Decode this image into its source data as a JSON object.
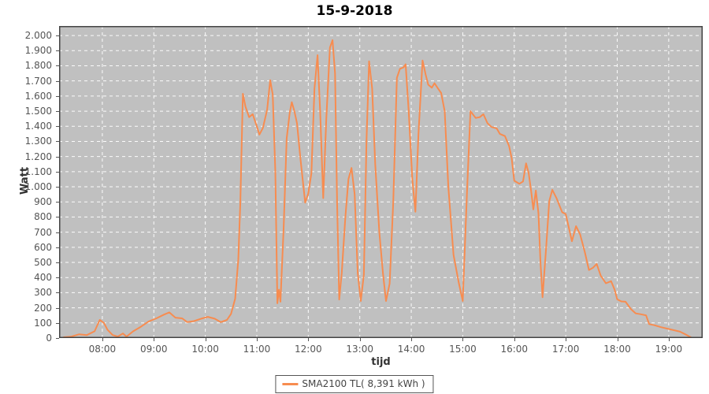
{
  "title": "15-9-2018",
  "axes": {
    "y_label": "Watt",
    "x_label": "tijd"
  },
  "legend": {
    "label": "SMA2100 TL( 8,391 kWh )"
  },
  "colors": {
    "line": "#f78c50",
    "plot_bg": "#c0c0c0",
    "grid": "#ffffff",
    "frame": "#444444",
    "tick_label": "#555555"
  },
  "chart_data": {
    "type": "line",
    "title": "15-9-2018",
    "xlabel": "tijd",
    "ylabel": "Watt",
    "grid": "white dashed on gray background",
    "legend_position": "bottom-center",
    "xlim_hours": [
      7.16,
      19.66
    ],
    "ylim": [
      0,
      2063
    ],
    "x_ticks_hours": [
      8,
      9,
      10,
      11,
      12,
      13,
      14,
      15,
      16,
      17,
      18,
      19
    ],
    "x_tick_labels": [
      "08:00",
      "09:00",
      "10:00",
      "11:00",
      "12:00",
      "13:00",
      "14:00",
      "15:00",
      "16:00",
      "17:00",
      "18:00",
      "19:00"
    ],
    "y_ticks": [
      0,
      100,
      200,
      300,
      400,
      500,
      600,
      700,
      800,
      900,
      1000,
      1100,
      1200,
      1300,
      1400,
      1500,
      1600,
      1700,
      1800,
      1900,
      2000
    ],
    "series": [
      {
        "name": "SMA2100 TL( 8,391 kWh )",
        "color": "#f78c50",
        "points": [
          [
            7.25,
            5
          ],
          [
            7.4,
            10
          ],
          [
            7.55,
            25
          ],
          [
            7.7,
            20
          ],
          [
            7.85,
            45
          ],
          [
            7.95,
            120
          ],
          [
            8.03,
            100
          ],
          [
            8.1,
            55
          ],
          [
            8.2,
            20
          ],
          [
            8.3,
            10
          ],
          [
            8.4,
            30
          ],
          [
            8.47,
            10
          ],
          [
            8.6,
            45
          ],
          [
            8.75,
            75
          ],
          [
            8.9,
            110
          ],
          [
            9.05,
            130
          ],
          [
            9.2,
            155
          ],
          [
            9.3,
            170
          ],
          [
            9.42,
            135
          ],
          [
            9.55,
            130
          ],
          [
            9.65,
            105
          ],
          [
            9.78,
            112
          ],
          [
            9.92,
            128
          ],
          [
            10.05,
            140
          ],
          [
            10.18,
            128
          ],
          [
            10.3,
            105
          ],
          [
            10.42,
            120
          ],
          [
            10.5,
            160
          ],
          [
            10.58,
            260
          ],
          [
            10.64,
            520
          ],
          [
            10.68,
            900
          ],
          [
            10.73,
            1615
          ],
          [
            10.78,
            1530
          ],
          [
            10.85,
            1460
          ],
          [
            10.92,
            1480
          ],
          [
            11.0,
            1400
          ],
          [
            11.05,
            1345
          ],
          [
            11.12,
            1390
          ],
          [
            11.2,
            1510
          ],
          [
            11.26,
            1705
          ],
          [
            11.31,
            1610
          ],
          [
            11.36,
            1100
          ],
          [
            11.4,
            230
          ],
          [
            11.43,
            320
          ],
          [
            11.46,
            240
          ],
          [
            11.52,
            720
          ],
          [
            11.58,
            1320
          ],
          [
            11.64,
            1490
          ],
          [
            11.68,
            1560
          ],
          [
            11.73,
            1500
          ],
          [
            11.78,
            1420
          ],
          [
            11.85,
            1180
          ],
          [
            11.94,
            895
          ],
          [
            12.0,
            955
          ],
          [
            12.06,
            1090
          ],
          [
            12.12,
            1650
          ],
          [
            12.18,
            1870
          ],
          [
            12.23,
            1500
          ],
          [
            12.29,
            925
          ],
          [
            12.35,
            1450
          ],
          [
            12.42,
            1920
          ],
          [
            12.47,
            1970
          ],
          [
            12.52,
            1750
          ],
          [
            12.56,
            900
          ],
          [
            12.6,
            255
          ],
          [
            12.65,
            430
          ],
          [
            12.72,
            800
          ],
          [
            12.78,
            1050
          ],
          [
            12.84,
            1125
          ],
          [
            12.9,
            950
          ],
          [
            12.96,
            430
          ],
          [
            13.02,
            245
          ],
          [
            13.08,
            420
          ],
          [
            13.13,
            1300
          ],
          [
            13.18,
            1830
          ],
          [
            13.24,
            1650
          ],
          [
            13.3,
            1150
          ],
          [
            13.38,
            700
          ],
          [
            13.45,
            430
          ],
          [
            13.51,
            245
          ],
          [
            13.58,
            360
          ],
          [
            13.65,
            900
          ],
          [
            13.72,
            1720
          ],
          [
            13.78,
            1780
          ],
          [
            13.85,
            1790
          ],
          [
            13.89,
            1810
          ],
          [
            13.95,
            1500
          ],
          [
            14.02,
            1050
          ],
          [
            14.08,
            835
          ],
          [
            14.14,
            1350
          ],
          [
            14.22,
            1835
          ],
          [
            14.28,
            1740
          ],
          [
            14.33,
            1675
          ],
          [
            14.4,
            1655
          ],
          [
            14.45,
            1685
          ],
          [
            14.52,
            1650
          ],
          [
            14.58,
            1620
          ],
          [
            14.65,
            1500
          ],
          [
            14.72,
            1000
          ],
          [
            14.82,
            550
          ],
          [
            14.92,
            370
          ],
          [
            15.0,
            245
          ],
          [
            15.08,
            950
          ],
          [
            15.15,
            1500
          ],
          [
            15.25,
            1455
          ],
          [
            15.33,
            1460
          ],
          [
            15.4,
            1480
          ],
          [
            15.48,
            1420
          ],
          [
            15.56,
            1395
          ],
          [
            15.66,
            1385
          ],
          [
            15.72,
            1350
          ],
          [
            15.82,
            1335
          ],
          [
            15.9,
            1270
          ],
          [
            15.95,
            1190
          ],
          [
            16.0,
            1040
          ],
          [
            16.1,
            1020
          ],
          [
            16.17,
            1035
          ],
          [
            16.23,
            1155
          ],
          [
            16.28,
            1090
          ],
          [
            16.33,
            965
          ],
          [
            16.37,
            850
          ],
          [
            16.42,
            975
          ],
          [
            16.47,
            825
          ],
          [
            16.51,
            500
          ],
          [
            16.55,
            270
          ],
          [
            16.62,
            600
          ],
          [
            16.68,
            905
          ],
          [
            16.74,
            980
          ],
          [
            16.82,
            925
          ],
          [
            16.93,
            832
          ],
          [
            17.0,
            820
          ],
          [
            17.12,
            640
          ],
          [
            17.2,
            740
          ],
          [
            17.28,
            685
          ],
          [
            17.37,
            570
          ],
          [
            17.45,
            450
          ],
          [
            17.53,
            465
          ],
          [
            17.6,
            490
          ],
          [
            17.68,
            412
          ],
          [
            17.78,
            362
          ],
          [
            17.88,
            376
          ],
          [
            17.95,
            320
          ],
          [
            18.0,
            256
          ],
          [
            18.08,
            242
          ],
          [
            18.16,
            240
          ],
          [
            18.27,
            190
          ],
          [
            18.36,
            163
          ],
          [
            18.45,
            158
          ],
          [
            18.56,
            150
          ],
          [
            18.62,
            92
          ],
          [
            18.72,
            85
          ],
          [
            18.85,
            72
          ],
          [
            18.96,
            63
          ],
          [
            19.1,
            52
          ],
          [
            19.22,
            42
          ],
          [
            19.32,
            25
          ],
          [
            19.43,
            5
          ]
        ]
      }
    ]
  }
}
